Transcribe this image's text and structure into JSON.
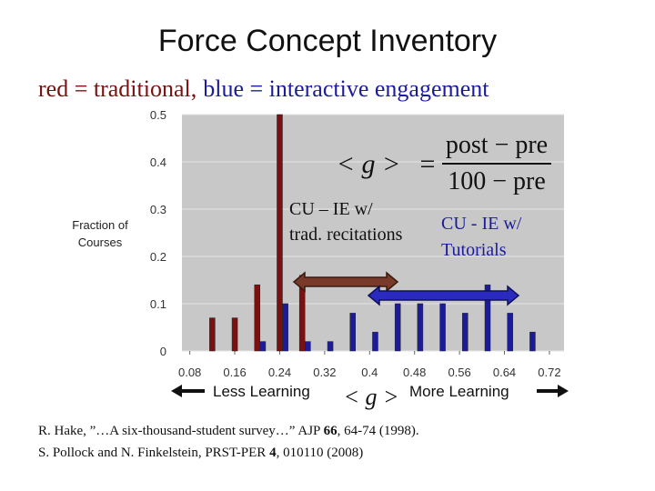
{
  "chart_data": {
    "type": "bar",
    "title": "Force Concept Inventory",
    "ylabel": [
      "Fraction of",
      "Courses"
    ],
    "xlabel": "< g >",
    "formula": {
      "lhs": "< g >",
      "equals": "=",
      "numerator": "post − pre",
      "denominator": "100 − pre"
    },
    "annotations": [
      "CU – IE w/",
      "trad. recitations",
      "CU - IE w/",
      "Tutorials"
    ],
    "direction_labels": [
      "Less Learning",
      "More Learning"
    ],
    "series": [
      {
        "name": "red = traditional,",
        "color": "#7a1010",
        "x": [
          0.12,
          0.16,
          0.2,
          0.24,
          0.28
        ],
        "values": [
          0.07,
          0.07,
          0.14,
          0.5,
          0.16
        ]
      },
      {
        "name": "blue = interactive engagement",
        "color": "#1c1c9a",
        "x": [
          0.21,
          0.25,
          0.29,
          0.33,
          0.37,
          0.41,
          0.45,
          0.49,
          0.53,
          0.57,
          0.61,
          0.65,
          0.69
        ],
        "values": [
          0.02,
          0.1,
          0.02,
          0.02,
          0.08,
          0.04,
          0.1,
          0.1,
          0.1,
          0.08,
          0.14,
          0.08,
          0.04
        ]
      }
    ],
    "xlim": [
      0.066,
      0.746
    ],
    "xticks": [
      0.08,
      0.16,
      0.24,
      0.32,
      0.4,
      0.48,
      0.56,
      0.64,
      0.72
    ],
    "ylim": [
      0,
      0.5
    ],
    "yticks": [
      0,
      0.1,
      0.2,
      0.3,
      0.4,
      0.5
    ],
    "grid": true,
    "references": [
      [
        {
          "text": "R. Hake, ”…A six-thousand-student survey…” AJP ",
          "bold": false
        },
        {
          "text": "66",
          "bold": true
        },
        {
          "text": ", 64-74 (1998).",
          "bold": false
        }
      ],
      [
        {
          "text": "S. Pollock and N. Finkelstein, PRST-PER ",
          "bold": false
        },
        {
          "text": "4",
          "bold": true
        },
        {
          "text": ", 010110 (2008)",
          "bold": false
        }
      ]
    ]
  }
}
